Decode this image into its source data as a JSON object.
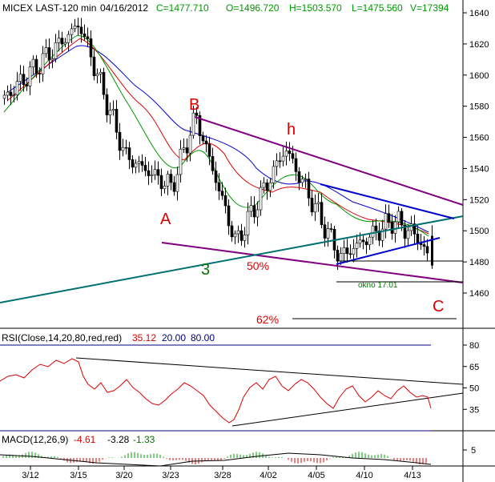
{
  "header": {
    "symbol": "MICEX LAST-120 min",
    "date": "04/16/2012",
    "close": "C=1477.710",
    "open": "O=1496.720",
    "high": "H=1503.570",
    "low": "L=1475.560",
    "volume": "V=17394"
  },
  "chart_data": [
    {
      "type": "candlestick",
      "title": "MICEX LAST-120 min",
      "ylim": [
        1440,
        1650
      ],
      "y_ticks": [
        "1640",
        "1620",
        "1600",
        "1580",
        "1560",
        "1540",
        "1520",
        "1500",
        "1480",
        "1460"
      ],
      "x_ticks": [
        "3/12",
        "3/15",
        "3/20",
        "3/23",
        "3/28",
        "4/02",
        "4/05",
        "4/10",
        "4/13"
      ],
      "last": {
        "open": 1496.72,
        "high": 1503.57,
        "low": 1475.56,
        "close": 1477.71
      },
      "price_path": [
        {
          "x": "3/12",
          "y": 1585
        },
        {
          "x": "3/15",
          "y": 1633
        },
        {
          "x": "3/20",
          "y": 1548
        },
        {
          "x": "3/23",
          "y": 1528
        },
        {
          "x": "3/23",
          "y": 1574
        },
        {
          "x": "3/28",
          "y": 1492
        },
        {
          "x": "4/02",
          "y": 1553
        },
        {
          "x": "4/05",
          "y": 1483
        },
        {
          "x": "4/10",
          "y": 1507
        },
        {
          "x": "4/13",
          "y": 1496
        },
        {
          "x": "4/16",
          "y": 1478
        }
      ],
      "annotations": {
        "B": "B",
        "h": "h",
        "A": "A",
        "three": "3",
        "C": "C",
        "fib50": "50%",
        "fib62": "62%",
        "okno": "okno 17.01"
      }
    },
    {
      "type": "line",
      "title": "RSI(Close,14,20,80,red,red)",
      "current": "35.12",
      "lower": "20.00",
      "upper": "80.00",
      "y_ticks": [
        "80",
        "65",
        "50",
        "35"
      ],
      "ylim": [
        15,
        85
      ]
    },
    {
      "type": "histogram",
      "title": "MACD(12,26,9)",
      "macd": "-4.61",
      "signal": "-3.28",
      "histogram": "-1.33",
      "y_ticks": [
        "5"
      ]
    }
  ],
  "colors": {
    "price": "#000000",
    "ma_fast": "#009900",
    "ma_mid": "#dd0000",
    "ma_slow": "#0000cc",
    "trend_purple": "#800080",
    "trend_teal": "#007070",
    "channel_blue": "#0000cc",
    "annotation_red": "#dd0000",
    "annotation_green": "#007700",
    "rsi": "#dd0000",
    "guide_navy": "#000080"
  }
}
